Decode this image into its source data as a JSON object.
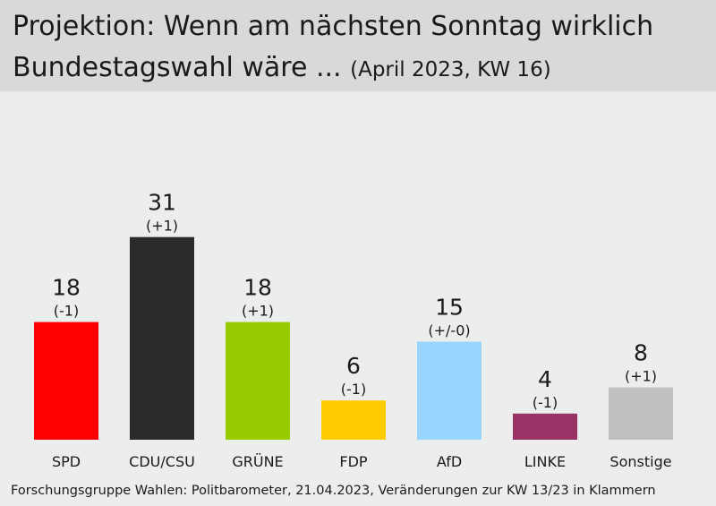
{
  "header": {
    "title_line1": "Projektion: Wenn am nächsten Sonntag wirklich",
    "title_line2": "Bundestagswahl wäre ...",
    "subtitle": "(April 2023, KW 16)"
  },
  "footer": {
    "source": "Forschungsgruppe Wahlen: Politbarometer, 21.04.2023, Veränderungen zur KW 13/23 in Klammern"
  },
  "chart_data": {
    "type": "bar",
    "title": "Projektion: Wenn am nächsten Sonntag wirklich Bundestagswahl wäre ...",
    "subtitle": "(April 2023, KW 16)",
    "categories": [
      "SPD",
      "CDU/CSU",
      "GRÜNE",
      "FDP",
      "AfD",
      "LINKE",
      "Sonstige"
    ],
    "values": [
      18,
      31,
      18,
      6,
      15,
      4,
      8
    ],
    "changes": [
      "(-1)",
      "(+1)",
      "(+1)",
      "(-1)",
      "(+/-0)",
      "(-1)",
      "(+1)"
    ],
    "colors": [
      "#ff0000",
      "#2b2b2b",
      "#99cc00",
      "#ffcc00",
      "#99d6ff",
      "#993366",
      "#c0c0c0"
    ],
    "grid": false,
    "legend": "none"
  }
}
